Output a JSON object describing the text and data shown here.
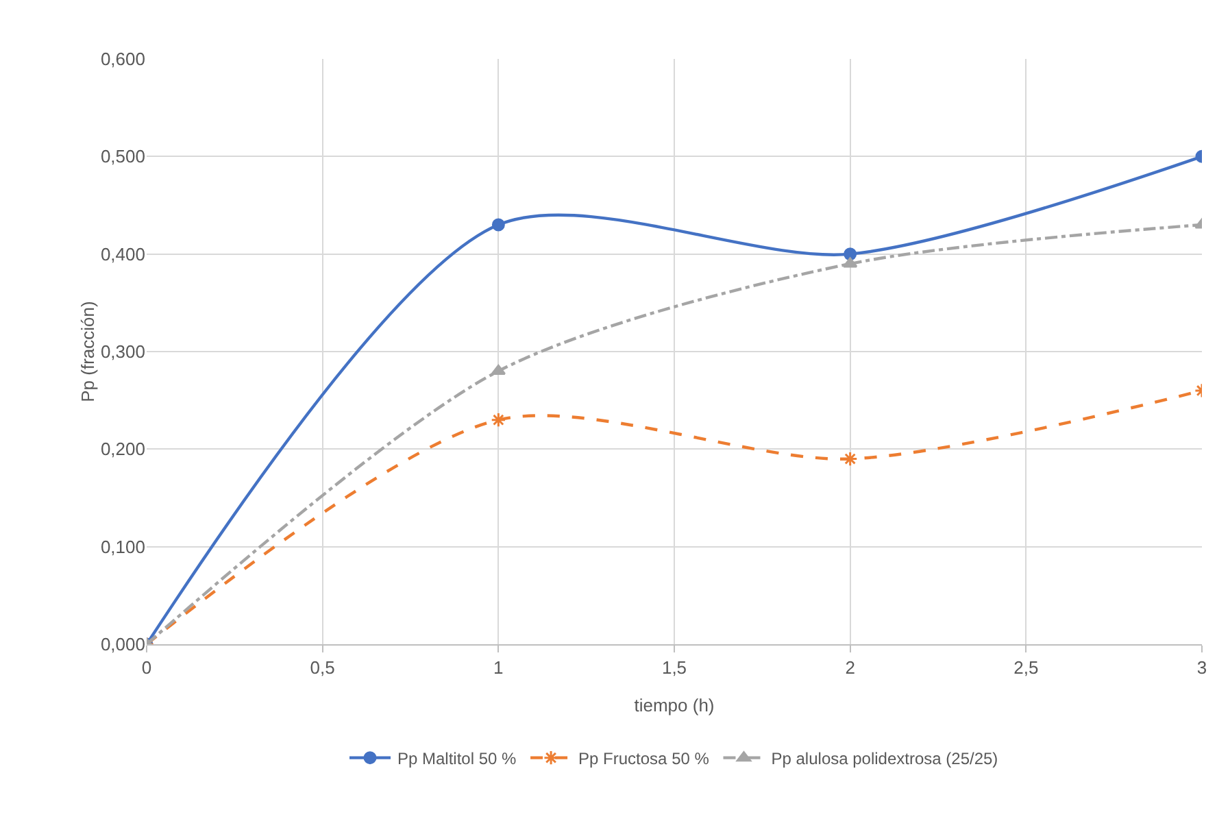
{
  "chart_data": {
    "type": "line",
    "xlabel": "tiempo (h)",
    "ylabel": "Pp (fracción)",
    "x": [
      0,
      1,
      2,
      3
    ],
    "series": [
      {
        "name": "Pp Maltitol 50 %",
        "color": "#4472c4",
        "values": [
          0,
          0.43,
          0.4,
          0.5
        ],
        "marker": "circle",
        "line_style": "solid"
      },
      {
        "name": "Pp Fructosa 50 %",
        "color": "#ed7d31",
        "values": [
          0,
          0.23,
          0.19,
          0.26
        ],
        "marker": "cross",
        "line_style": "dashed"
      },
      {
        "name": "Pp alulosa polidextrosa (25/25)",
        "color": "#a5a5a5",
        "values": [
          0,
          0.28,
          0.39,
          0.43
        ],
        "marker": "triangle",
        "line_style": "dashdot"
      }
    ],
    "xlim": [
      0,
      3
    ],
    "xticks": [
      0,
      {
        "value": 0.5,
        "label": "0,5"
      },
      1,
      {
        "value": 1.5,
        "label": "1,5"
      },
      2,
      {
        "value": 2.5,
        "label": "2,5"
      },
      3
    ],
    "ylim": [
      0,
      0.6
    ],
    "yticks": [
      {
        "value": 0,
        "label": "0,000"
      },
      {
        "value": 0.1,
        "label": "0,100"
      },
      {
        "value": 0.2,
        "label": "0,200"
      },
      {
        "value": 0.3,
        "label": "0,300"
      },
      {
        "value": 0.4,
        "label": "0,400"
      },
      {
        "value": 0.5,
        "label": "0,500"
      },
      {
        "value": 0.6,
        "label": "0,600"
      }
    ],
    "grid": true,
    "legend": "bottom"
  }
}
